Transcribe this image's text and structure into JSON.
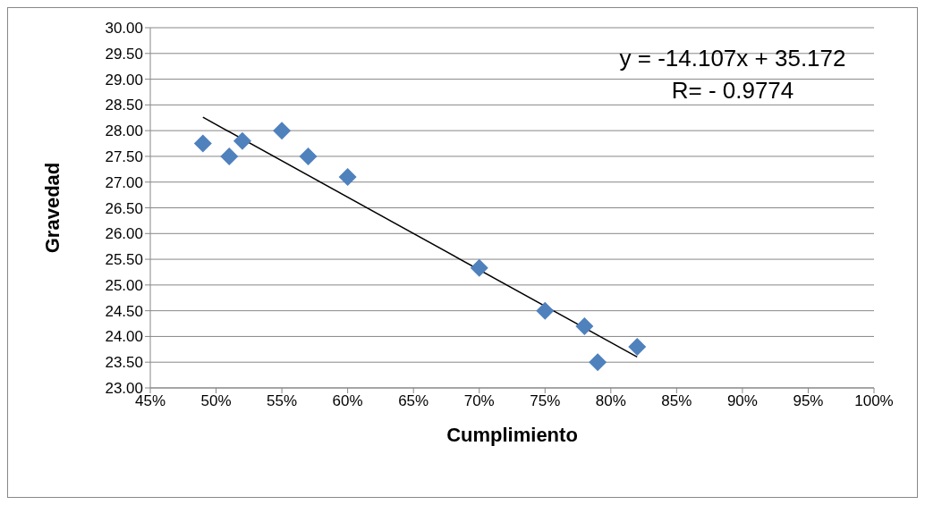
{
  "chart_data": {
    "type": "scatter",
    "xlabel": "Cumplimiento",
    "ylabel": "Gravedad",
    "annotations": [
      "y = -14.107x + 35.172",
      "R= - 0.9774"
    ],
    "xlim": [
      45,
      100
    ],
    "xticks": [
      {
        "value": 45,
        "label": "45%"
      },
      {
        "value": 50,
        "label": "50%"
      },
      {
        "value": 55,
        "label": "55%"
      },
      {
        "value": 60,
        "label": "60%"
      },
      {
        "value": 65,
        "label": "65%"
      },
      {
        "value": 70,
        "label": "70%"
      },
      {
        "value": 75,
        "label": "75%"
      },
      {
        "value": 80,
        "label": "80%"
      },
      {
        "value": 85,
        "label": "85%"
      },
      {
        "value": 90,
        "label": "90%"
      },
      {
        "value": 95,
        "label": "95%"
      },
      {
        "value": 100,
        "label": "100%"
      }
    ],
    "ylim": [
      23,
      30
    ],
    "yticks": [
      {
        "value": 23,
        "label": "23.00"
      },
      {
        "value": 23.5,
        "label": "23.50"
      },
      {
        "value": 24,
        "label": "24.00"
      },
      {
        "value": 24.5,
        "label": "24.50"
      },
      {
        "value": 25,
        "label": "25.00"
      },
      {
        "value": 25.5,
        "label": "25.50"
      },
      {
        "value": 26,
        "label": "26.00"
      },
      {
        "value": 26.5,
        "label": "26.50"
      },
      {
        "value": 27,
        "label": "27.00"
      },
      {
        "value": 27.5,
        "label": "27.50"
      },
      {
        "value": 28,
        "label": "28.00"
      },
      {
        "value": 28.5,
        "label": "28.50"
      },
      {
        "value": 29,
        "label": "29.00"
      },
      {
        "value": 29.5,
        "label": "29.50"
      },
      {
        "value": 30,
        "label": "30.00"
      }
    ],
    "grid": "y",
    "marker": "diamond",
    "series": [
      {
        "color": "#4f81bd",
        "x": [
          49,
          51,
          52,
          55,
          57,
          60,
          70,
          75,
          78,
          79,
          82
        ],
        "values": [
          27.75,
          27.5,
          27.8,
          28.0,
          27.5,
          27.1,
          25.33,
          24.5,
          24.2,
          23.5,
          23.8
        ]
      },
      {
        "type": "line",
        "color": "#000000",
        "x": [
          49,
          82
        ],
        "values": [
          28.26,
          23.6
        ],
        "line_style": "solid",
        "marker": "none"
      }
    ]
  }
}
